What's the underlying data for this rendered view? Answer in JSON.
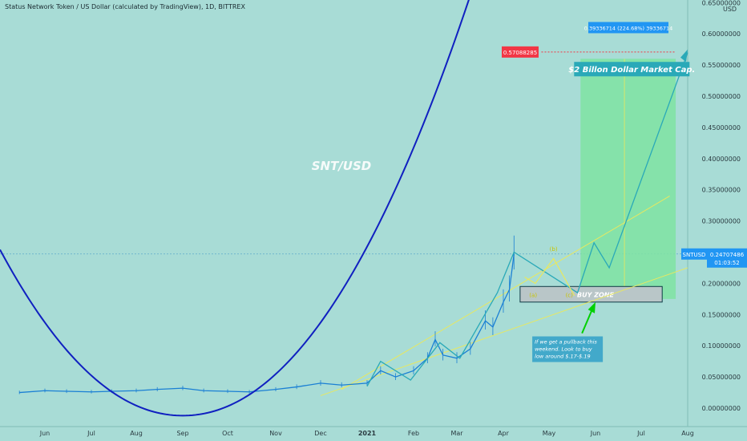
{
  "header": {
    "title": "Status Network Token / US Dollar (calculated by TradingView), 1D, BITTREX"
  },
  "axis": {
    "currency": "USD",
    "price_ticks": [
      "0.65000000",
      "0.60000000",
      "0.55000000",
      "0.50000000",
      "0.45000000",
      "0.40000000",
      "0.35000000",
      "0.30000000",
      "0.25000000",
      "0.20000000",
      "0.15000000",
      "0.10000000",
      "0.05000000",
      "0.00000000"
    ],
    "time_ticks": [
      "Jun",
      "Jul",
      "Aug",
      "Sep",
      "Oct",
      "Nov",
      "Dec",
      "2021",
      "Feb",
      "Mar",
      "Apr",
      "May",
      "Jun",
      "Jul",
      "Aug"
    ]
  },
  "price_label": {
    "symbol": "SNTUSD",
    "value": "0.24707486",
    "countdown": "01:03:52"
  },
  "measure": {
    "target_price": "0.57088285",
    "change_text": "0.39336714 (224.68%) 39336714"
  },
  "annotations": {
    "watermark": "SNT/USD",
    "market_cap": "$2 Billon Dollar Market Cap.",
    "buy_zone": "BUY ZONE",
    "pullback_note_1": "If we get a pullback this",
    "pullback_note_2": "weekend. Look to buy",
    "pullback_note_3": "low around $.17-$.19",
    "wave_a": "(a)",
    "wave_b": "(b)",
    "wave_c": "(c)"
  },
  "colors": {
    "background": "#a8dcd6",
    "price_line": "#1a7fd4",
    "curve": "#1020c0",
    "channel": "#e8e860",
    "target_zone": "#7fe3a2",
    "projection": "#2aa9b8",
    "arrow": "#00d000",
    "current_price_bg": "#2196f3",
    "target_label_bg": "#f23645"
  },
  "chart_data": {
    "type": "line",
    "title": "Status Network Token / US Dollar (calculated by TradingView), 1D, BITTREX",
    "xlabel": "",
    "ylabel": "USD",
    "ylim": [
      0,
      0.65
    ],
    "x_ticks": [
      "Jun",
      "Jul",
      "Aug",
      "Sep",
      "Oct",
      "Nov",
      "Dec",
      "2021",
      "Feb",
      "Mar",
      "Apr",
      "May",
      "Jun",
      "Jul",
      "Aug"
    ],
    "series": [
      {
        "x": [
          "2020-05-15",
          "2020-06-01",
          "2020-06-15",
          "2020-07-01",
          "2020-07-15",
          "2020-08-01",
          "2020-08-15",
          "2020-09-01",
          "2020-09-15",
          "2020-10-01",
          "2020-10-15",
          "2020-11-01",
          "2020-11-15",
          "2020-12-01",
          "2020-12-15",
          "2021-01-01",
          "2021-01-10",
          "2021-01-20",
          "2021-02-01",
          "2021-02-10",
          "2021-02-15",
          "2021-02-20",
          "2021-03-01",
          "2021-03-10",
          "2021-03-20",
          "2021-03-25",
          "2021-04-01",
          "2021-04-05",
          "2021-04-08"
        ],
        "values": [
          0.025,
          0.028,
          0.027,
          0.026,
          0.027,
          0.028,
          0.03,
          0.032,
          0.028,
          0.027,
          0.026,
          0.03,
          0.034,
          0.04,
          0.037,
          0.04,
          0.06,
          0.05,
          0.06,
          0.08,
          0.11,
          0.085,
          0.08,
          0.095,
          0.14,
          0.13,
          0.17,
          0.19,
          0.247
        ]
      }
    ],
    "current_price": 0.24707486,
    "projection_target": 0.57088285,
    "target_change": "0.39336714 (224.68%)"
  }
}
